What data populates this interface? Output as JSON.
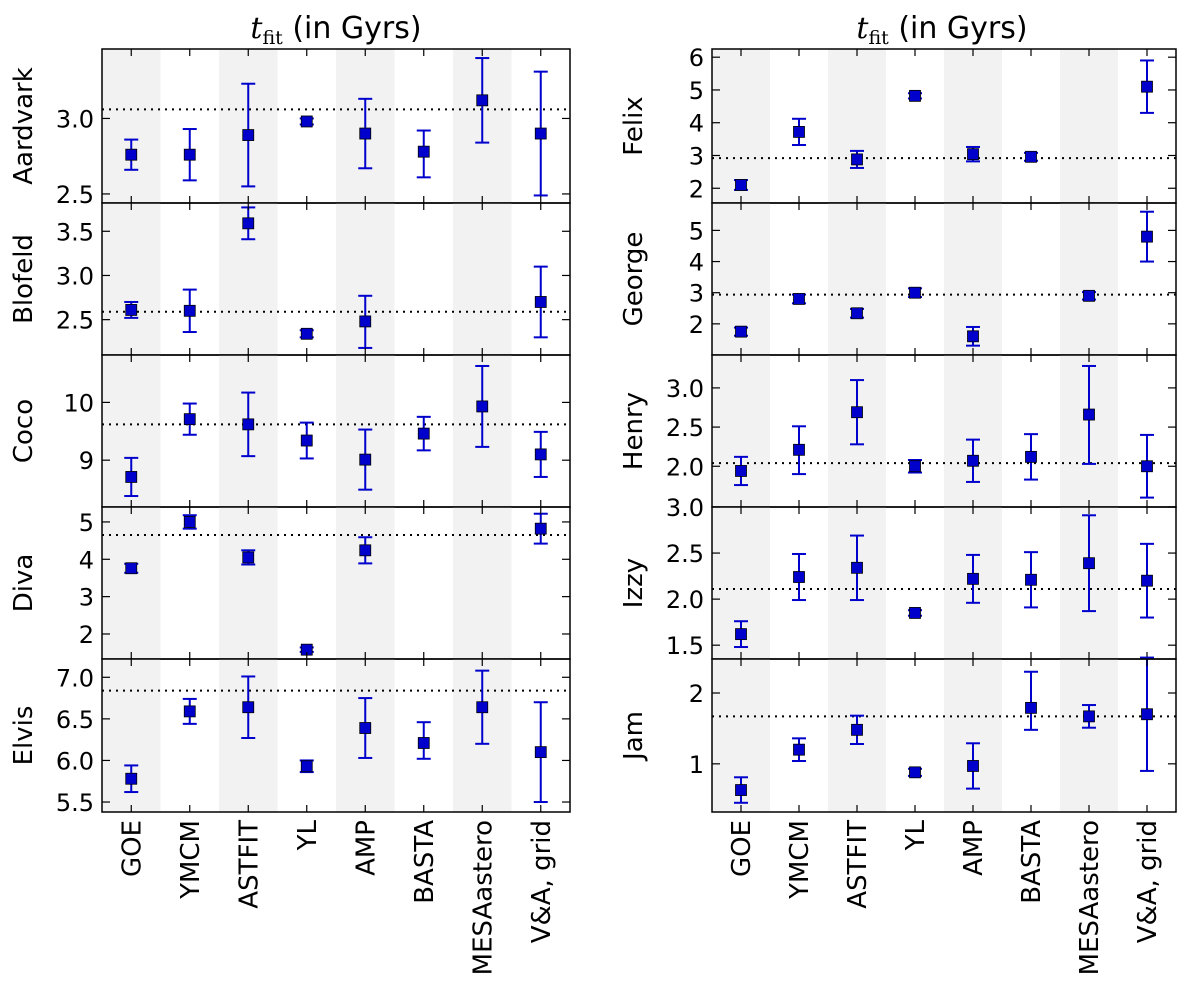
{
  "chart_data": [
    {
      "type": "scatter",
      "column_title": {
        "main": "t",
        "sub": "fit",
        "suffix": " (in Gyrs)"
      },
      "categories": [
        "GOE",
        "YMCM",
        "ASTFIT",
        "YL",
        "AMP",
        "BASTA",
        "MESAastero",
        "V&A, grid"
      ],
      "marker_color": "#0000cc",
      "errorbar_color": "#0000cc",
      "band_color": "#f2f2f2",
      "panels": [
        {
          "name": "Aardvark",
          "ylim": [
            2.44,
            3.46
          ],
          "yticks": [
            2.5,
            3.0
          ],
          "ticklabels": [
            "2.5",
            "3.0"
          ],
          "reference": 3.06,
          "values": [
            2.76,
            2.76,
            2.89,
            2.98,
            2.9,
            2.78,
            3.12,
            2.9
          ],
          "lower": [
            2.66,
            2.59,
            2.55,
            2.96,
            2.67,
            2.61,
            2.84,
            2.49
          ],
          "upper": [
            2.86,
            2.93,
            3.23,
            3.0,
            3.13,
            2.92,
            3.4,
            3.31
          ]
        },
        {
          "name": "Blofeld",
          "ylim": [
            2.1,
            3.82
          ],
          "yticks": [
            2.5,
            3.0,
            3.5
          ],
          "ticklabels": [
            "2.5",
            "3.0",
            "3.5"
          ],
          "reference": 2.59,
          "values": [
            2.61,
            2.6,
            3.59,
            2.34,
            2.48,
            null,
            null,
            2.7
          ],
          "lower": [
            2.52,
            2.36,
            3.41,
            2.3,
            2.18,
            null,
            null,
            2.3
          ],
          "upper": [
            2.7,
            2.84,
            3.77,
            2.38,
            2.77,
            null,
            null,
            3.1
          ]
        },
        {
          "name": "Coco",
          "ylim": [
            8.19,
            10.82
          ],
          "yticks": [
            9,
            10
          ],
          "ticklabels": [
            "9",
            "10"
          ],
          "reference": 9.62,
          "values": [
            8.71,
            9.71,
            9.62,
            9.34,
            9.01,
            9.46,
            9.93,
            9.1
          ],
          "lower": [
            8.38,
            9.44,
            9.07,
            9.03,
            8.49,
            9.17,
            9.23,
            8.71
          ],
          "upper": [
            9.04,
            9.98,
            10.17,
            9.65,
            9.53,
            9.75,
            10.63,
            9.49
          ]
        },
        {
          "name": "Diva",
          "ylim": [
            1.33,
            5.4
          ],
          "yticks": [
            2,
            3,
            4,
            5
          ],
          "ticklabels": [
            "2",
            "3",
            "4",
            "5"
          ],
          "reference": 4.65,
          "values": [
            3.76,
            5.0,
            4.05,
            1.58,
            4.24,
            null,
            null,
            4.82
          ],
          "lower": [
            3.64,
            4.82,
            3.86,
            1.52,
            3.89,
            null,
            null,
            4.42
          ],
          "upper": [
            3.88,
            5.18,
            4.24,
            1.64,
            4.59,
            null,
            null,
            5.22
          ]
        },
        {
          "name": "Elvis",
          "ylim": [
            5.38,
            7.22
          ],
          "yticks": [
            5.5,
            6.0,
            6.5,
            7.0
          ],
          "ticklabels": [
            "5.5",
            "6.0",
            "6.5",
            "7.0"
          ],
          "reference": 6.84,
          "values": [
            5.78,
            6.59,
            6.64,
            5.93,
            6.39,
            6.21,
            6.64,
            6.1
          ],
          "lower": [
            5.62,
            6.44,
            6.27,
            5.86,
            6.03,
            6.02,
            6.2,
            5.5
          ],
          "upper": [
            5.94,
            6.74,
            7.01,
            6.0,
            6.75,
            6.46,
            7.08,
            6.7
          ]
        }
      ]
    },
    {
      "type": "scatter",
      "column_title": {
        "main": "t",
        "sub": "fit",
        "suffix": " (in Gyrs)"
      },
      "categories": [
        "GOE",
        "YMCM",
        "ASTFIT",
        "YL",
        "AMP",
        "BASTA",
        "MESAastero",
        "V&A, grid"
      ],
      "marker_color": "#0000cc",
      "errorbar_color": "#0000cc",
      "band_color": "#f2f2f2",
      "panels": [
        {
          "name": "Felix",
          "ylim": [
            1.55,
            6.25
          ],
          "yticks": [
            2,
            3,
            4,
            5,
            6
          ],
          "ticklabels": [
            "2",
            "3",
            "4",
            "5",
            "6"
          ],
          "reference": 2.92,
          "values": [
            2.1,
            3.72,
            2.88,
            4.82,
            3.04,
            2.96,
            null,
            5.1
          ],
          "lower": [
            1.95,
            3.32,
            2.62,
            4.74,
            2.82,
            2.84,
            null,
            4.3
          ],
          "upper": [
            2.25,
            4.12,
            3.14,
            4.9,
            3.26,
            3.08,
            null,
            5.9
          ]
        },
        {
          "name": "George",
          "ylim": [
            1.0,
            5.88
          ],
          "yticks": [
            2,
            3,
            4,
            5
          ],
          "ticklabels": [
            "2",
            "3",
            "4",
            "5"
          ],
          "reference": 2.94,
          "values": [
            1.75,
            2.8,
            2.34,
            3.0,
            1.6,
            null,
            2.9,
            4.8
          ],
          "lower": [
            1.62,
            2.66,
            2.2,
            2.86,
            1.3,
            null,
            2.78,
            4.0
          ],
          "upper": [
            1.88,
            2.94,
            2.48,
            3.14,
            1.9,
            null,
            3.02,
            5.6
          ]
        },
        {
          "name": "Henry",
          "ylim": [
            1.48,
            3.42
          ],
          "yticks": [
            2.0,
            2.5,
            3.0
          ],
          "ticklabels": [
            "2.0",
            "2.5",
            "3.0"
          ],
          "reference": 2.04,
          "values": [
            1.94,
            2.21,
            2.69,
            2.0,
            2.07,
            2.12,
            2.66,
            2.0
          ],
          "lower": [
            1.76,
            1.9,
            2.28,
            1.92,
            1.8,
            1.83,
            2.03,
            1.6
          ],
          "upper": [
            2.12,
            2.51,
            3.1,
            2.08,
            2.34,
            2.41,
            3.28,
            2.4
          ]
        },
        {
          "name": "Izzy",
          "ylim": [
            1.35,
            3.0
          ],
          "yticks": [
            1.5,
            2.0,
            2.5,
            3.0
          ],
          "ticklabels": [
            "1.5",
            "2.0",
            "2.5",
            "3.0"
          ],
          "reference": 2.11,
          "values": [
            1.62,
            2.24,
            2.34,
            1.85,
            2.22,
            2.21,
            2.39,
            2.2
          ],
          "lower": [
            1.48,
            1.99,
            1.99,
            1.82,
            1.96,
            1.91,
            1.87,
            1.8
          ],
          "upper": [
            1.76,
            2.49,
            2.69,
            1.88,
            2.48,
            2.51,
            2.91,
            2.6
          ]
        },
        {
          "name": "Jam",
          "ylim": [
            0.32,
            2.48
          ],
          "yticks": [
            1,
            2
          ],
          "ticklabels": [
            "1",
            "2"
          ],
          "reference": 1.67,
          "values": [
            0.63,
            1.2,
            1.48,
            0.88,
            0.97,
            1.79,
            1.67,
            1.7
          ],
          "lower": [
            0.45,
            1.04,
            1.28,
            0.83,
            0.65,
            1.48,
            1.51,
            0.9
          ],
          "upper": [
            0.81,
            1.36,
            1.68,
            0.93,
            1.29,
            2.3,
            1.83,
            2.5
          ]
        }
      ]
    }
  ]
}
